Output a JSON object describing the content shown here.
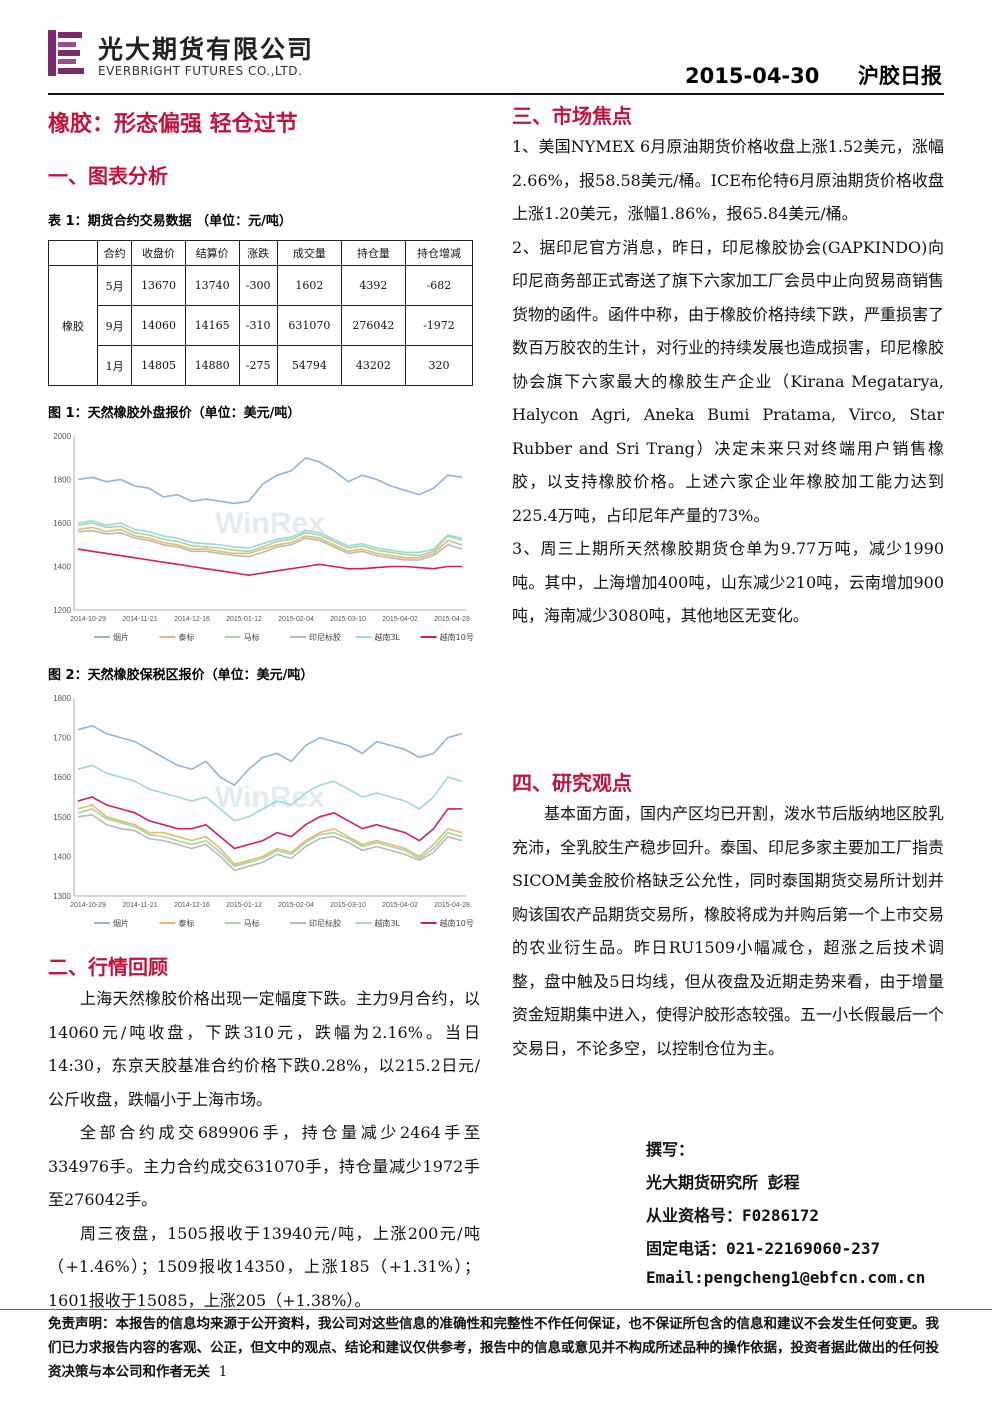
{
  "header": {
    "company_cn": "光大期货有限公司",
    "company_en": "EVERBRIGHT FUTURES CO.,LTD.",
    "date": "2015-04-30",
    "report": "沪胶日报"
  },
  "title": "橡胶：形态偏强 轻仓过节",
  "sections": {
    "s1": "一、图表分析",
    "s2": "二、行情回顾",
    "s3": "三、市场焦点",
    "s4": "四、研究观点"
  },
  "table": {
    "caption": "表 1：期货合约交易数据  （单位：元/吨）",
    "headers": [
      "合约",
      "收盘价",
      "结算价",
      "涨跌",
      "成交量",
      "持仓量",
      "持仓增减"
    ],
    "row_label": "橡胶",
    "rows": [
      [
        "5月",
        "13670",
        "13740",
        "-300",
        "1602",
        "4392",
        "-682"
      ],
      [
        "9月",
        "14060",
        "14165",
        "-310",
        "631070",
        "276042",
        "-1972"
      ],
      [
        "1月",
        "14805",
        "14880",
        "-275",
        "54794",
        "43202",
        "320"
      ]
    ]
  },
  "chart_data": [
    {
      "type": "line",
      "title": "图 1：天然橡胶外盘报价（单位：美元/吨）",
      "watermark": "WinRex",
      "x_ticks": [
        "2014-10-29",
        "2014-11-21",
        "2014-12-16",
        "2015-01-12",
        "2015-02-04",
        "2015-03-10",
        "2015-04-02",
        "2015-04-28"
      ],
      "ylim": [
        1200,
        2000
      ],
      "y_ticks": [
        1200,
        1400,
        1600,
        1800,
        2000
      ],
      "legend_position": "bottom",
      "series": [
        {
          "name": "烟片",
          "color": "#8fb4dd",
          "values": [
            1800,
            1810,
            1790,
            1800,
            1770,
            1760,
            1720,
            1730,
            1700,
            1710,
            1700,
            1690,
            1700,
            1780,
            1820,
            1840,
            1900,
            1880,
            1840,
            1790,
            1820,
            1800,
            1770,
            1750,
            1730,
            1760,
            1820,
            1810
          ]
        },
        {
          "name": "泰标",
          "color": "#e9b870",
          "values": [
            1570,
            1580,
            1560,
            1570,
            1540,
            1530,
            1510,
            1500,
            1480,
            1480,
            1470,
            1460,
            1460,
            1480,
            1500,
            1510,
            1540,
            1530,
            1500,
            1470,
            1480,
            1460,
            1450,
            1440,
            1440,
            1460,
            1520,
            1500
          ]
        },
        {
          "name": "马标",
          "color": "#a6d79a",
          "values": [
            1590,
            1600,
            1580,
            1585,
            1555,
            1545,
            1525,
            1515,
            1495,
            1490,
            1485,
            1475,
            1470,
            1490,
            1515,
            1525,
            1555,
            1545,
            1515,
            1485,
            1495,
            1475,
            1465,
            1455,
            1450,
            1470,
            1540,
            1520
          ]
        },
        {
          "name": "印尼标胶",
          "color": "#b9b9b9",
          "values": [
            1560,
            1565,
            1550,
            1555,
            1530,
            1520,
            1500,
            1490,
            1470,
            1470,
            1460,
            1450,
            1445,
            1465,
            1490,
            1500,
            1530,
            1520,
            1490,
            1460,
            1470,
            1450,
            1440,
            1430,
            1430,
            1450,
            1500,
            1480
          ]
        },
        {
          "name": "越南3L",
          "color": "#9ad8e0",
          "values": [
            1600,
            1610,
            1590,
            1600,
            1570,
            1560,
            1540,
            1530,
            1510,
            1505,
            1500,
            1490,
            1485,
            1505,
            1525,
            1535,
            1565,
            1555,
            1525,
            1495,
            1505,
            1485,
            1475,
            1465,
            1465,
            1480,
            1545,
            1530
          ]
        },
        {
          "name": "越南10号",
          "color": "#d21e5a",
          "values": [
            1480,
            1470,
            1460,
            1450,
            1440,
            1430,
            1420,
            1410,
            1400,
            1390,
            1380,
            1370,
            1360,
            1370,
            1380,
            1390,
            1400,
            1410,
            1400,
            1390,
            1390,
            1395,
            1400,
            1400,
            1395,
            1390,
            1400,
            1400
          ]
        }
      ]
    },
    {
      "type": "line",
      "title": "图 2：天然橡胶保税区报价（单位：美元/吨）",
      "watermark": "WinRex",
      "x_ticks": [
        "2014-10-29",
        "2014-11-21",
        "2014-12-16",
        "2015-01-12",
        "2015-02-04",
        "2015-03-10",
        "2015-04-02",
        "2015-04-28"
      ],
      "ylim": [
        1300,
        1800
      ],
      "y_ticks": [
        1300,
        1400,
        1500,
        1600,
        1700,
        1800
      ],
      "legend_position": "bottom",
      "series": [
        {
          "name": "烟片",
          "color": "#8fb4dd",
          "values": [
            1720,
            1730,
            1710,
            1700,
            1690,
            1670,
            1650,
            1630,
            1620,
            1640,
            1600,
            1580,
            1620,
            1650,
            1660,
            1640,
            1680,
            1700,
            1690,
            1680,
            1660,
            1690,
            1680,
            1670,
            1650,
            1660,
            1700,
            1710
          ]
        },
        {
          "name": "泰标",
          "color": "#e9b870",
          "values": [
            1520,
            1530,
            1500,
            1490,
            1480,
            1460,
            1460,
            1450,
            1440,
            1450,
            1420,
            1380,
            1390,
            1400,
            1420,
            1410,
            1440,
            1460,
            1470,
            1450,
            1430,
            1440,
            1430,
            1420,
            1400,
            1430,
            1470,
            1460
          ]
        },
        {
          "name": "马标",
          "color": "#a6d79a",
          "values": [
            1510,
            1520,
            1495,
            1485,
            1475,
            1455,
            1450,
            1440,
            1430,
            1440,
            1410,
            1375,
            1385,
            1395,
            1415,
            1405,
            1435,
            1455,
            1460,
            1445,
            1425,
            1435,
            1425,
            1415,
            1395,
            1420,
            1460,
            1450
          ]
        },
        {
          "name": "印尼标胶",
          "color": "#b9b9b9",
          "values": [
            1500,
            1505,
            1480,
            1470,
            1465,
            1445,
            1440,
            1430,
            1420,
            1430,
            1400,
            1365,
            1375,
            1385,
            1405,
            1395,
            1425,
            1445,
            1450,
            1435,
            1415,
            1425,
            1415,
            1405,
            1390,
            1410,
            1450,
            1440
          ]
        },
        {
          "name": "越南3L",
          "color": "#9ad8e0",
          "values": [
            1620,
            1630,
            1610,
            1600,
            1590,
            1570,
            1560,
            1550,
            1540,
            1550,
            1520,
            1490,
            1500,
            1520,
            1540,
            1530,
            1560,
            1580,
            1590,
            1570,
            1550,
            1560,
            1550,
            1540,
            1520,
            1550,
            1600,
            1590
          ]
        },
        {
          "name": "越南10号",
          "color": "#d21e5a",
          "values": [
            1540,
            1550,
            1530,
            1520,
            1510,
            1490,
            1480,
            1470,
            1470,
            1480,
            1450,
            1420,
            1430,
            1440,
            1460,
            1450,
            1480,
            1500,
            1510,
            1490,
            1470,
            1480,
            1470,
            1460,
            1440,
            1470,
            1520,
            1520
          ]
        }
      ]
    }
  ],
  "review": {
    "p1": "上海天然橡胶价格出现一定幅度下跌。主力9月合约，以14060元/吨收盘，下跌310元，跌幅为2.16%。当日14:30，东京天胶基准合约价格下跌0.28%，以215.2日元/公斤收盘，跌幅小于上海市场。",
    "p2": "全部合约成交689906手，持仓量减少2464手至334976手。主力合约成交631070手，持仓量减少1972手至276042手。",
    "p3": "周三夜盘，1505报收于13940元/吨，上涨200元/吨（+1.46%）；1509报收14350，上涨185（+1.31%）；1601报收于15085，上涨205（+1.38%）。"
  },
  "focus": {
    "p1": "1、美国NYMEX 6月原油期货价格收盘上涨1.52美元，涨幅2.66%，报58.58美元/桶。ICE布伦特6月原油期货价格收盘上涨1.20美元，涨幅1.86%，报65.84美元/桶。",
    "p2": "2、据印尼官方消息，昨日，印尼橡胶协会(GAPKINDO)向印尼商务部正式寄送了旗下六家加工厂会员中止向贸易商销售货物的函件。函件中称，由于橡胶价格持续下跌，严重损害了数百万胶农的生计，对行业的持续发展也造成损害，印尼橡胶协会旗下六家最大的橡胶生产企业（Kirana Megatarya, Halycon Agri, Aneka Bumi Pratama, Virco, Star Rubber and Sri Trang）决定未来只对终端用户销售橡胶，以支持橡胶价格。上述六家企业年橡胶加工能力达到225.4万吨，占印尼年产量的73%。",
    "p3": "3、周三上期所天然橡胶期货仓单为9.77万吨，减少1990吨。其中，上海增加400吨，山东减少210吨，云南增加900吨，海南减少3080吨，其他地区无变化。"
  },
  "view": {
    "p1": "基本面方面，国内产区均已开割，泼水节后版纳地区胶乳充沛，全乳胶生产稳步回升。泰国、印尼多家主要加工厂指责SICOM美金胶价格缺乏公允性，同时泰国期货交易所计划并购该国农产品期货交易所，橡胶将成为并购后第一个上市交易的农业衍生品。昨日RU1509小幅减仓，超涨之后技术调整，盘中触及5日均线，但从夜盘及近期走势来看，由于增量资金短期集中进入，使得沪胶形态较强。五一小长假最后一个交易日，不论多空，以控制仓位为主。"
  },
  "author": {
    "l1": "撰写：",
    "l2": "光大期货研究所 彭程",
    "l3": "从业资格号：F0286172",
    "l4": "固定电话：021-22169060-237",
    "l5": "Email:pengcheng1@ebfcn.com.cn"
  },
  "footer": {
    "disclaimer": "免责声明：本报告的信息均来源于公开资料，我公司对这些信息的准确性和完整性不作任何保证，也不保证所包含的信息和建议不会发生任何变更。我们已力求报告内容的客观、公正，但文中的观点、结论和建议仅供参考，报告中的信息或意见并不构成所述品种的操作依据，投资者据此做出的任何投资决策与本公司和作者无关",
    "page": "1"
  },
  "colors": {
    "accent_red": "#c0143c",
    "logo_purple": "#7a2a6e",
    "footer_blue": "#2a6fb0"
  }
}
